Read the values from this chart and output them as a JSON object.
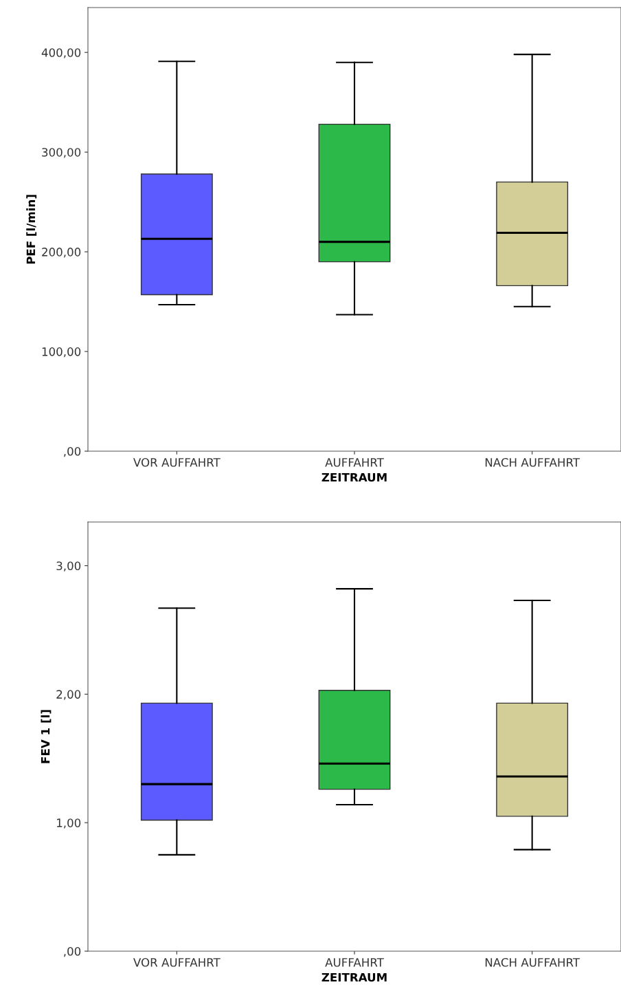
{
  "chart_data": [
    {
      "type": "box",
      "ylabel": "PEF [l/min]",
      "xlabel": "ZEITRAUM",
      "categories": [
        "VOR AUFFAHRT",
        "AUFFAHRT",
        "NACH AUFFAHRT"
      ],
      "colors": [
        "#5b5bff",
        "#2db84a",
        "#d3ce98"
      ],
      "ylim": [
        0,
        445
      ],
      "yticks": [
        {
          "value": 0,
          "label": ",00"
        },
        {
          "value": 100,
          "label": "100,00"
        },
        {
          "value": 200,
          "label": "200,00"
        },
        {
          "value": 300,
          "label": "300,00"
        },
        {
          "value": 400,
          "label": "400,00"
        }
      ],
      "grid": false,
      "boxes": [
        {
          "low": 147,
          "q1": 157,
          "median": 213,
          "q3": 278,
          "high": 391
        },
        {
          "low": 137,
          "q1": 190,
          "median": 210,
          "q3": 328,
          "high": 390
        },
        {
          "low": 145,
          "q1": 166,
          "median": 219,
          "q3": 270,
          "high": 398
        }
      ]
    },
    {
      "type": "box",
      "ylabel": "FEV 1 [l]",
      "xlabel": "ZEITRAUM",
      "categories": [
        "VOR AUFFAHRT",
        "AUFFAHRT",
        "NACH AUFFAHRT"
      ],
      "colors": [
        "#5b5bff",
        "#2db84a",
        "#d3ce98"
      ],
      "ylim": [
        0,
        3.34
      ],
      "yticks": [
        {
          "value": 0,
          "label": ",00"
        },
        {
          "value": 1,
          "label": "1,00"
        },
        {
          "value": 2,
          "label": "2,00"
        },
        {
          "value": 3,
          "label": "3,00"
        }
      ],
      "grid": false,
      "boxes": [
        {
          "low": 0.75,
          "q1": 1.02,
          "median": 1.3,
          "q3": 1.93,
          "high": 2.67
        },
        {
          "low": 1.14,
          "q1": 1.26,
          "median": 1.46,
          "q3": 2.03,
          "high": 2.82
        },
        {
          "low": 0.79,
          "q1": 1.05,
          "median": 1.36,
          "q3": 1.93,
          "high": 2.73
        }
      ]
    }
  ]
}
